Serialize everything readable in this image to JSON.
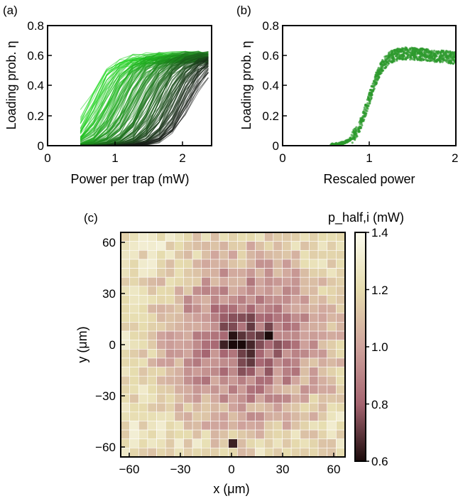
{
  "panel_a": {
    "label": "(a)",
    "xlabel": "Power per trap (mW)",
    "ylabel": "Loading prob. η",
    "xticks": [
      "0",
      "1",
      "2"
    ],
    "yticks": [
      "0",
      "0.2",
      "0.4",
      "0.6",
      "0.8"
    ]
  },
  "panel_b": {
    "label": "(b)",
    "xlabel": "Rescaled power",
    "ylabel": "Loading prob. η",
    "xticks": [
      "0",
      "1",
      "2"
    ],
    "yticks": [
      "0",
      "0.2",
      "0.4",
      "0.6",
      "0.8"
    ]
  },
  "panel_c": {
    "label": "(c)",
    "xlabel": "x (μm)",
    "ylabel": "y (μm)",
    "xticks": [
      "−60",
      "−30",
      "0",
      "30",
      "60"
    ],
    "yticks": [
      "60",
      "30",
      "0",
      "−30",
      "−60"
    ],
    "colorbar_label": "p_half,i (mW)",
    "colorbar_ticks": [
      "1.4",
      "1.2",
      "1.0",
      "0.8",
      "0.6"
    ]
  },
  "colors": {
    "green_light": "#22dd22",
    "green_dark": "#1a1a1a",
    "scatter": "#2e9a2e",
    "cmap_high": "#fbfbee",
    "cmap_mid_high": "#e6dcae",
    "cmap_mid": "#cfa39c",
    "cmap_mid_low": "#a56470",
    "cmap_low": "#1a0a0a"
  },
  "chart_data": [
    {
      "id": "a",
      "type": "line",
      "title": "",
      "xlabel": "Power per trap (mW)",
      "ylabel": "Loading prob. η",
      "xlim": [
        0,
        2.5
      ],
      "ylim": [
        0,
        0.8
      ],
      "grid": false,
      "x": [
        0.5,
        0.7,
        0.9,
        1.1,
        1.3,
        1.5,
        1.7,
        1.9,
        2.1,
        2.3,
        2.45
      ],
      "series_note": "about 200 curves, each a sigmoid in power with half-point 0.6–2.2 mW (colored green→black), saturating near 0.6",
      "series": [
        {
          "values": [
            0.02,
            0.3,
            0.6,
            0.62,
            0.6,
            0.63,
            0.61,
            0.62,
            0.6,
            0.61,
            0.62
          ]
        },
        {
          "values": [
            0.0,
            0.02,
            0.2,
            0.5,
            0.6,
            0.62,
            0.6,
            0.61,
            0.62,
            0.61,
            0.6
          ]
        },
        {
          "values": [
            0.0,
            0.0,
            0.02,
            0.15,
            0.45,
            0.6,
            0.61,
            0.62,
            0.6,
            0.62,
            0.61
          ]
        },
        {
          "values": [
            0.0,
            0.0,
            0.0,
            0.02,
            0.12,
            0.4,
            0.58,
            0.6,
            0.62,
            0.61,
            0.62
          ]
        },
        {
          "values": [
            0.0,
            0.0,
            0.0,
            0.0,
            0.02,
            0.1,
            0.3,
            0.52,
            0.6,
            0.61,
            0.6
          ]
        },
        {
          "values": [
            0.0,
            0.0,
            0.0,
            0.0,
            0.0,
            0.02,
            0.06,
            0.18,
            0.38,
            0.52,
            0.58
          ]
        }
      ]
    },
    {
      "id": "b",
      "type": "scatter",
      "title": "",
      "xlabel": "Rescaled power",
      "ylabel": "Loading prob. η",
      "xlim": [
        0,
        2
      ],
      "ylim": [
        0,
        0.8
      ],
      "grid": false,
      "x": [
        0.6,
        0.7,
        0.8,
        0.9,
        1.0,
        1.1,
        1.2,
        1.3,
        1.4,
        1.6,
        1.8,
        2.0
      ],
      "y": [
        0.0,
        0.02,
        0.06,
        0.15,
        0.3,
        0.5,
        0.61,
        0.63,
        0.62,
        0.61,
        0.6,
        0.58
      ]
    },
    {
      "id": "c",
      "type": "heatmap",
      "title": "",
      "xlabel": "x (μm)",
      "ylabel": "y (μm)",
      "xlim": [
        -65,
        65
      ],
      "ylim": [
        -65,
        65
      ],
      "grid_size": [
        25,
        25
      ],
      "colorbar_label": "p_half,i (mW)",
      "clim": [
        0.6,
        1.4
      ],
      "description": "values ~1.2 near the edges decreasing to ~0.6–0.7 near the center (around x=0..20, y=0..10)",
      "dark_cells": [
        {
          "x": 0,
          "y": 0,
          "value": 0.6
        },
        {
          "x": 5,
          "y": 0,
          "value": 0.6
        },
        {
          "x": 0,
          "y": 5,
          "value": 0.62
        },
        {
          "x": 20,
          "y": 5,
          "value": 0.6
        },
        {
          "x": -5,
          "y": 0,
          "value": 0.65
        },
        {
          "x": 0,
          "y": -55,
          "value": 0.65
        }
      ]
    }
  ]
}
